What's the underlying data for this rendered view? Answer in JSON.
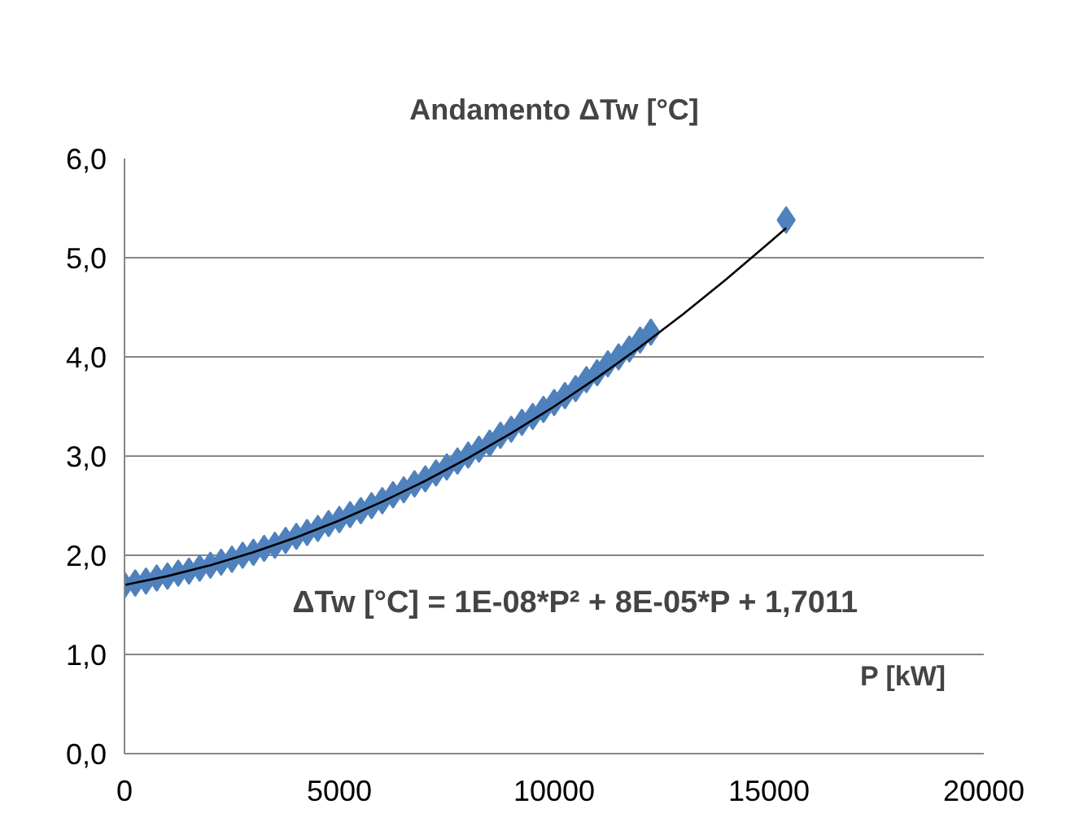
{
  "chart_data": {
    "type": "scatter",
    "title": "Andamento ΔTw [°C]",
    "xlabel": "P [kW]",
    "annotations": [
      "ΔTw [°C] = 1E-08*P² + 8E-05*P + 1,7011"
    ],
    "marker": "diamond",
    "grid": "y",
    "xlim": [
      0,
      20000
    ],
    "xticks": [
      0,
      5000,
      10000,
      15000,
      20000
    ],
    "ylim": [
      0,
      6
    ],
    "yticks": [
      {
        "value": 0,
        "label": "0,0"
      },
      {
        "value": 1,
        "label": "1,0"
      },
      {
        "value": 2,
        "label": "2,0"
      },
      {
        "value": 3,
        "label": "3,0"
      },
      {
        "value": 4,
        "label": "4,0"
      },
      {
        "value": 5,
        "label": "5,0"
      },
      {
        "value": 6,
        "label": "6,0"
      }
    ],
    "series": [
      {
        "color": "#4f81bd",
        "x": [
          0,
          250,
          500,
          750,
          1000,
          1250,
          1500,
          1750,
          2000,
          2250,
          2500,
          2750,
          3000,
          3250,
          3500,
          3750,
          4000,
          4250,
          4500,
          4750,
          5000,
          5250,
          5500,
          5750,
          6000,
          6250,
          6500,
          6750,
          7000,
          7250,
          7500,
          7750,
          8000,
          8250,
          8500,
          8750,
          9000,
          9250,
          9500,
          9750,
          10000,
          10250,
          10500,
          10750,
          11000,
          11250,
          11500,
          11750,
          12000,
          12250,
          15400
        ],
        "values": [
          1.7,
          1.72,
          1.74,
          1.77,
          1.79,
          1.82,
          1.84,
          1.87,
          1.9,
          1.93,
          1.96,
          2.0,
          2.03,
          2.07,
          2.1,
          2.15,
          2.19,
          2.23,
          2.27,
          2.32,
          2.36,
          2.41,
          2.45,
          2.5,
          2.55,
          2.61,
          2.66,
          2.72,
          2.77,
          2.83,
          2.89,
          2.95,
          3.01,
          3.07,
          3.13,
          3.21,
          3.27,
          3.34,
          3.4,
          3.47,
          3.54,
          3.61,
          3.68,
          3.77,
          3.84,
          3.93,
          4.0,
          4.08,
          4.17,
          4.25,
          5.38
        ]
      },
      {
        "type": "line",
        "color": "#000000",
        "marker": "none",
        "x": [
          0,
          1000,
          2000,
          3000,
          4000,
          5000,
          6000,
          7000,
          8000,
          9000,
          10000,
          11000,
          12000,
          13000,
          14000,
          15000,
          15400
        ],
        "values": [
          1.7,
          1.79,
          1.9,
          2.03,
          2.18,
          2.35,
          2.54,
          2.75,
          2.98,
          3.23,
          3.5,
          3.79,
          4.1,
          4.43,
          4.78,
          5.15,
          5.3
        ]
      }
    ]
  }
}
